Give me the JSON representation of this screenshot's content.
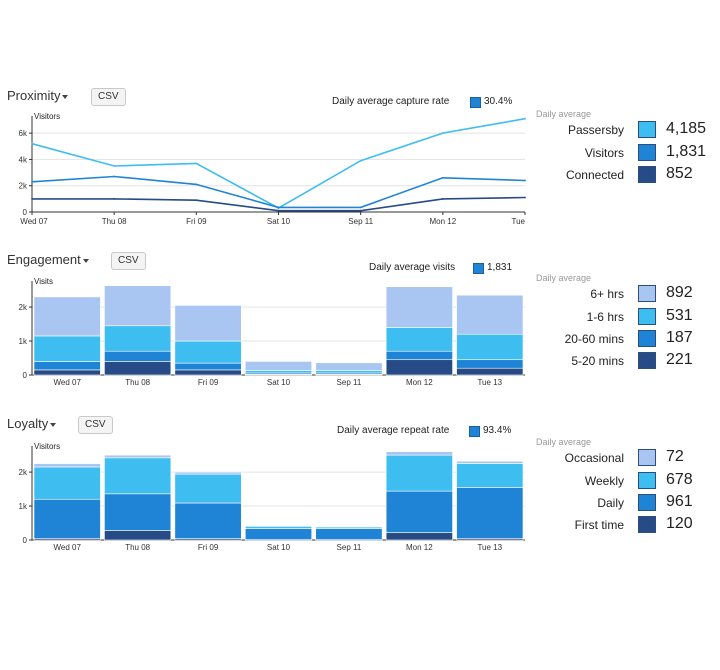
{
  "colors": {
    "light_blue": "#a9c6f2",
    "sky": "#3ebdf0",
    "mid": "#1f84d6",
    "navy": "#274b87",
    "line_dark": "#1f5ea8",
    "axis": "#333333"
  },
  "chart_data": [
    {
      "id": "proximity",
      "type": "line",
      "title": "Proximity",
      "csv_label": "CSV",
      "avg_label": "Daily average capture rate",
      "avg_value": "30.4%",
      "ylabel": "Visitors",
      "ylim": [
        0,
        7000
      ],
      "yticks": [
        0,
        2000,
        4000,
        6000
      ],
      "ytick_labels": [
        "0",
        "2k",
        "4k",
        "6k"
      ],
      "categories": [
        "Wed 07",
        "Thu 08",
        "Fri 09",
        "Sat 10",
        "Sep 11",
        "Mon 12",
        "Tue"
      ],
      "legend_head": "Daily average",
      "series": [
        {
          "name": "Passersby",
          "display_value": "4,185",
          "color": "#3ebdf0",
          "values": [
            5200,
            3500,
            3700,
            300,
            3900,
            6000,
            7100
          ]
        },
        {
          "name": "Visitors",
          "display_value": "1,831",
          "color": "#1f84d6",
          "values": [
            2300,
            2700,
            2100,
            350,
            350,
            2600,
            2400
          ]
        },
        {
          "name": "Connected",
          "display_value": "852",
          "color": "#274b87",
          "values": [
            1000,
            1000,
            900,
            100,
            100,
            1000,
            1100
          ]
        }
      ]
    },
    {
      "id": "engagement",
      "type": "bar",
      "stacked": true,
      "title": "Engagement",
      "csv_label": "CSV",
      "avg_label": "Daily average visits",
      "avg_value": "1,831",
      "ylabel": "Visits",
      "ylim": [
        0,
        2650
      ],
      "yticks": [
        0,
        1000,
        2000
      ],
      "ytick_labels": [
        "0",
        "1k",
        "2k"
      ],
      "categories": [
        "Wed 07",
        "Thu 08",
        "Fri 09",
        "Sat 10",
        "Sep 11",
        "Mon 12",
        "Tue 13"
      ],
      "legend_head": "Daily average",
      "series": [
        {
          "name": "5-20 mins",
          "display_value": "221",
          "color": "#274b87",
          "values": [
            150,
            400,
            150,
            20,
            20,
            450,
            200
          ]
        },
        {
          "name": "20-60 mins",
          "display_value": "187",
          "color": "#1f84d6",
          "values": [
            250,
            300,
            200,
            40,
            40,
            250,
            250
          ]
        },
        {
          "name": "1-6 hrs",
          "display_value": "531",
          "color": "#3ebdf0",
          "values": [
            750,
            750,
            650,
            70,
            70,
            700,
            750
          ]
        },
        {
          "name": "6+ hrs",
          "display_value": "892",
          "color": "#a9c6f2",
          "values": [
            1150,
            1180,
            1050,
            270,
            230,
            1200,
            1150
          ]
        }
      ]
    },
    {
      "id": "loyalty",
      "type": "bar",
      "stacked": true,
      "title": "Loyalty",
      "csv_label": "CSV",
      "avg_label": "Daily average repeat rate",
      "avg_value": "93.4%",
      "ylabel": "Visitors",
      "ylim": [
        0,
        2650
      ],
      "yticks": [
        0,
        1000,
        2000
      ],
      "ytick_labels": [
        "0",
        "1k",
        "2k"
      ],
      "categories": [
        "Wed 07",
        "Thu 08",
        "Fri 09",
        "Sat 10",
        "Sep 11",
        "Mon 12",
        "Tue 13"
      ],
      "legend_head": "Daily average",
      "series": [
        {
          "name": "First time",
          "display_value": "120",
          "color": "#274b87",
          "values": [
            50,
            280,
            40,
            10,
            10,
            220,
            50
          ]
        },
        {
          "name": "Daily",
          "display_value": "961",
          "color": "#1f84d6",
          "values": [
            1150,
            1080,
            1050,
            330,
            330,
            1220,
            1500
          ]
        },
        {
          "name": "Weekly",
          "display_value": "678",
          "color": "#3ebdf0",
          "values": [
            950,
            1060,
            850,
            60,
            40,
            1060,
            700
          ]
        },
        {
          "name": "Occasional",
          "display_value": "72",
          "color": "#a9c6f2",
          "values": [
            100,
            80,
            60,
            0,
            0,
            100,
            70
          ]
        }
      ]
    }
  ]
}
